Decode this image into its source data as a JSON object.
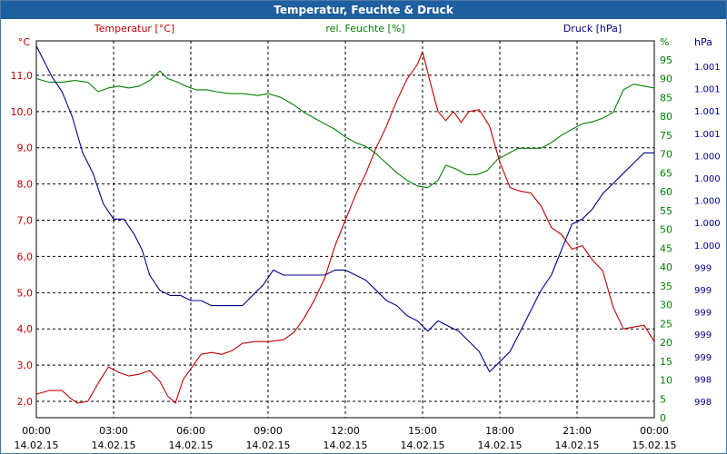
{
  "window": {
    "title": "Temperatur, Feuchte & Druck"
  },
  "colors": {
    "temperature": "#c00000",
    "humidity": "#008000",
    "pressure": "#00008b",
    "grid": "#000000"
  },
  "chart_data": {
    "type": "line",
    "title": "Temperatur, Feuchte & Druck",
    "grid": true,
    "x_ticks": [
      {
        "t": 0,
        "time": "00:00",
        "date": "14.02.15"
      },
      {
        "t": 3,
        "time": "03:00",
        "date": "14.02.15"
      },
      {
        "t": 6,
        "time": "06:00",
        "date": "14.02.15"
      },
      {
        "t": 9,
        "time": "09:00",
        "date": "14.02.15"
      },
      {
        "t": 12,
        "time": "12:00",
        "date": "14.02.15"
      },
      {
        "t": 15,
        "time": "15:00",
        "date": "14.02.15"
      },
      {
        "t": 18,
        "time": "18:00",
        "date": "14.02.15"
      },
      {
        "t": 21,
        "time": "21:00",
        "date": "14.02.15"
      },
      {
        "t": 24,
        "time": "00:00",
        "date": "15.02.15"
      }
    ],
    "axes": {
      "temperature": {
        "label": "Temperatur [°C]",
        "unit": "°C",
        "range": [
          1.55,
          11.95
        ],
        "ticks": [
          "2,0",
          "3,0",
          "4,0",
          "5,0",
          "6,0",
          "7,0",
          "8,0",
          "9,0",
          "10,0",
          "11,0"
        ]
      },
      "humidity": {
        "label": "rel. Feuchte [%]",
        "unit": "%",
        "range": [
          0,
          100
        ],
        "ticks": [
          "0",
          "5",
          "10",
          "15",
          "20",
          "25",
          "30",
          "35",
          "40",
          "45",
          "50",
          "55",
          "60",
          "65",
          "70",
          "75",
          "80",
          "85",
          "90",
          "95"
        ]
      },
      "pressure": {
        "label": "Druck [hPa]",
        "unit": "hPa",
        "range": [
          997.9,
          1001.6
        ],
        "ticks": [
          "998",
          "998",
          "999",
          "999",
          "999",
          "999",
          "999",
          "1.000",
          "1.000",
          "1.000",
          "1.000",
          "1.000",
          "1.001",
          "1.001",
          "1.001",
          "1.001"
        ]
      }
    },
    "series": [
      {
        "name": "Temperatur [°C]",
        "axis": "temperature",
        "points": [
          [
            0,
            2.2
          ],
          [
            0.5,
            2.3
          ],
          [
            1,
            2.3
          ],
          [
            1.3,
            2.1
          ],
          [
            1.6,
            1.95
          ],
          [
            2,
            2.0
          ],
          [
            2.4,
            2.5
          ],
          [
            2.8,
            2.95
          ],
          [
            3.2,
            2.8
          ],
          [
            3.6,
            2.7
          ],
          [
            4,
            2.75
          ],
          [
            4.4,
            2.85
          ],
          [
            4.8,
            2.55
          ],
          [
            5.1,
            2.15
          ],
          [
            5.4,
            1.95
          ],
          [
            5.7,
            2.6
          ],
          [
            6,
            2.9
          ],
          [
            6.4,
            3.3
          ],
          [
            6.8,
            3.35
          ],
          [
            7.2,
            3.3
          ],
          [
            7.6,
            3.4
          ],
          [
            8,
            3.6
          ],
          [
            8.5,
            3.65
          ],
          [
            9,
            3.65
          ],
          [
            9.6,
            3.7
          ],
          [
            10,
            3.9
          ],
          [
            10.4,
            4.3
          ],
          [
            10.8,
            4.8
          ],
          [
            11.2,
            5.4
          ],
          [
            11.6,
            6.3
          ],
          [
            12,
            7.0
          ],
          [
            12.4,
            7.7
          ],
          [
            12.8,
            8.3
          ],
          [
            13.2,
            9.0
          ],
          [
            13.6,
            9.6
          ],
          [
            14,
            10.3
          ],
          [
            14.4,
            10.9
          ],
          [
            14.8,
            11.3
          ],
          [
            15,
            11.65
          ],
          [
            15.3,
            10.8
          ],
          [
            15.6,
            10.0
          ],
          [
            15.9,
            9.75
          ],
          [
            16.2,
            10.0
          ],
          [
            16.5,
            9.7
          ],
          [
            16.8,
            10.0
          ],
          [
            17.2,
            10.05
          ],
          [
            17.6,
            9.6
          ],
          [
            18,
            8.6
          ],
          [
            18.4,
            7.9
          ],
          [
            18.8,
            7.8
          ],
          [
            19.2,
            7.75
          ],
          [
            19.6,
            7.4
          ],
          [
            20,
            6.8
          ],
          [
            20.4,
            6.6
          ],
          [
            20.8,
            6.2
          ],
          [
            21.2,
            6.3
          ],
          [
            21.6,
            5.9
          ],
          [
            22,
            5.6
          ],
          [
            22.4,
            4.6
          ],
          [
            22.8,
            4.0
          ],
          [
            23.2,
            4.05
          ],
          [
            23.6,
            4.1
          ],
          [
            24,
            3.65
          ]
        ]
      },
      {
        "name": "rel. Feuchte [%]",
        "axis": "humidity",
        "points": [
          [
            0,
            90
          ],
          [
            0.5,
            89
          ],
          [
            1,
            89
          ],
          [
            1.5,
            89.5
          ],
          [
            2,
            89
          ],
          [
            2.4,
            86.5
          ],
          [
            2.8,
            87.5
          ],
          [
            3.2,
            88
          ],
          [
            3.6,
            87.5
          ],
          [
            4,
            88
          ],
          [
            4.4,
            89.5
          ],
          [
            4.8,
            92
          ],
          [
            5.1,
            90
          ],
          [
            5.5,
            89
          ],
          [
            5.8,
            88
          ],
          [
            6.2,
            87
          ],
          [
            6.6,
            87
          ],
          [
            7,
            86.5
          ],
          [
            7.5,
            86
          ],
          [
            8,
            86
          ],
          [
            8.6,
            85.5
          ],
          [
            9,
            86
          ],
          [
            9.5,
            85
          ],
          [
            10,
            83
          ],
          [
            10.4,
            81
          ],
          [
            10.8,
            79.5
          ],
          [
            11.2,
            78
          ],
          [
            11.6,
            76.5
          ],
          [
            12,
            74.5
          ],
          [
            12.4,
            73
          ],
          [
            12.8,
            72
          ],
          [
            13.2,
            70
          ],
          [
            13.6,
            67.5
          ],
          [
            14,
            65
          ],
          [
            14.4,
            63
          ],
          [
            14.8,
            61.5
          ],
          [
            15.2,
            61
          ],
          [
            15.6,
            63
          ],
          [
            15.9,
            67
          ],
          [
            16.3,
            66
          ],
          [
            16.7,
            64.5
          ],
          [
            17.1,
            64.5
          ],
          [
            17.5,
            65.5
          ],
          [
            17.9,
            68.5
          ],
          [
            18.3,
            70
          ],
          [
            18.7,
            71.5
          ],
          [
            19.2,
            71.5
          ],
          [
            19.6,
            71.5
          ],
          [
            20,
            73
          ],
          [
            20.4,
            75
          ],
          [
            20.8,
            76.5
          ],
          [
            21.2,
            78
          ],
          [
            21.6,
            78.5
          ],
          [
            22,
            79.5
          ],
          [
            22.4,
            81
          ],
          [
            22.8,
            87
          ],
          [
            23.2,
            88.5
          ],
          [
            23.6,
            88
          ],
          [
            24,
            87.5
          ]
        ]
      },
      {
        "name": "Druck [hPa]",
        "axis": "pressure",
        "points": [
          [
            0,
            1001.55
          ],
          [
            0.3,
            1001.4
          ],
          [
            0.6,
            1001.25
          ],
          [
            1,
            1001.1
          ],
          [
            1.4,
            1000.85
          ],
          [
            1.8,
            1000.5
          ],
          [
            2.2,
            1000.3
          ],
          [
            2.6,
            1000.0
          ],
          [
            3.0,
            999.85
          ],
          [
            3.4,
            999.85
          ],
          [
            3.8,
            999.7
          ],
          [
            4.1,
            999.55
          ],
          [
            4.4,
            999.3
          ],
          [
            4.8,
            999.15
          ],
          [
            5.2,
            999.1
          ],
          [
            5.6,
            999.1
          ],
          [
            6.0,
            999.05
          ],
          [
            6.4,
            999.05
          ],
          [
            6.8,
            999.0
          ],
          [
            7.2,
            999.0
          ],
          [
            7.6,
            999.0
          ],
          [
            8.0,
            999.0
          ],
          [
            8.4,
            999.1
          ],
          [
            8.8,
            999.2
          ],
          [
            9.2,
            999.35
          ],
          [
            9.6,
            999.3
          ],
          [
            10,
            999.3
          ],
          [
            10.4,
            999.3
          ],
          [
            10.8,
            999.3
          ],
          [
            11.2,
            999.3
          ],
          [
            11.6,
            999.35
          ],
          [
            12.0,
            999.35
          ],
          [
            12.4,
            999.3
          ],
          [
            12.8,
            999.25
          ],
          [
            13.2,
            999.15
          ],
          [
            13.6,
            999.05
          ],
          [
            14.0,
            999.0
          ],
          [
            14.4,
            998.9
          ],
          [
            14.8,
            998.85
          ],
          [
            15.2,
            998.75
          ],
          [
            15.6,
            998.85
          ],
          [
            16.0,
            998.8
          ],
          [
            16.4,
            998.75
          ],
          [
            16.8,
            998.65
          ],
          [
            17.2,
            998.55
          ],
          [
            17.6,
            998.35
          ],
          [
            18.0,
            998.45
          ],
          [
            18.4,
            998.55
          ],
          [
            18.8,
            998.75
          ],
          [
            19.2,
            998.95
          ],
          [
            19.6,
            999.15
          ],
          [
            20.0,
            999.3
          ],
          [
            20.4,
            999.55
          ],
          [
            20.8,
            999.8
          ],
          [
            21.2,
            999.85
          ],
          [
            21.6,
            999.95
          ],
          [
            22.0,
            1000.1
          ],
          [
            22.4,
            1000.2
          ],
          [
            22.8,
            1000.3
          ],
          [
            23.2,
            1000.4
          ],
          [
            23.6,
            1000.5
          ],
          [
            24,
            1000.5
          ]
        ]
      }
    ]
  }
}
